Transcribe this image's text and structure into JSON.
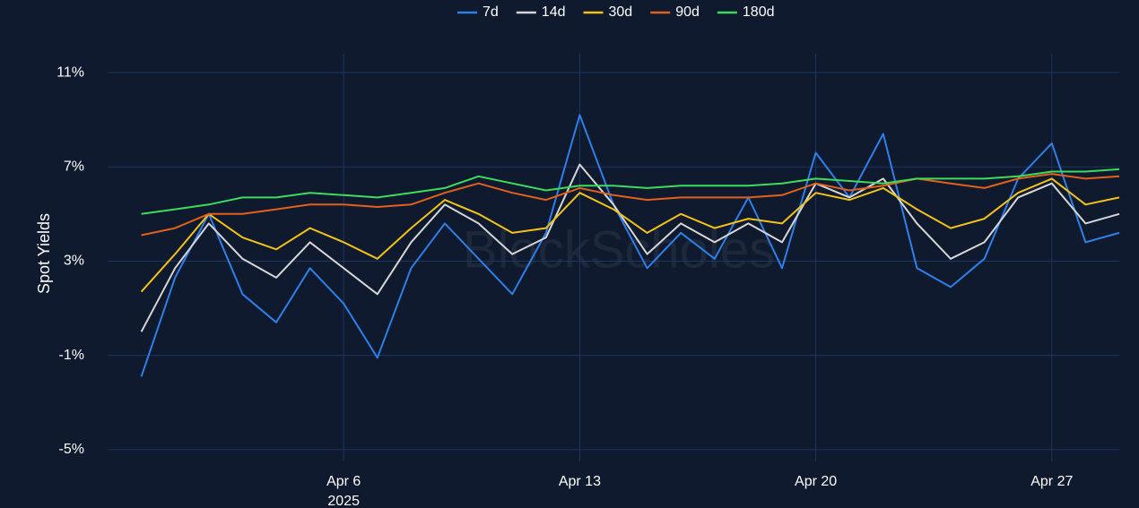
{
  "chart_data": {
    "type": "line",
    "y_label": "Spot Yields",
    "watermark": "BlockScholes",
    "legend": "top",
    "grid": true,
    "x": [
      "2025-03-31",
      "2025-04-01",
      "2025-04-02",
      "2025-04-03",
      "2025-04-04",
      "2025-04-05",
      "2025-04-06",
      "2025-04-07",
      "2025-04-08",
      "2025-04-09",
      "2025-04-10",
      "2025-04-11",
      "2025-04-12",
      "2025-04-13",
      "2025-04-14",
      "2025-04-15",
      "2025-04-16",
      "2025-04-17",
      "2025-04-18",
      "2025-04-19",
      "2025-04-20",
      "2025-04-21",
      "2025-04-22",
      "2025-04-23",
      "2025-04-24",
      "2025-04-25",
      "2025-04-26",
      "2025-04-27",
      "2025-04-28",
      "2025-04-29"
    ],
    "xlim": [
      "2025-03-30",
      "2025-04-29"
    ],
    "xticks": [
      {
        "value": "2025-04-06",
        "label": "Apr 6"
      },
      {
        "value": "2025-04-13",
        "label": "Apr 13"
      },
      {
        "value": "2025-04-20",
        "label": "Apr 20"
      },
      {
        "value": "2025-04-27",
        "label": "Apr 27"
      }
    ],
    "x_year": "2025",
    "ylim": [
      -5.5,
      11.8
    ],
    "yticks": [
      {
        "value": 11,
        "label": "11%"
      },
      {
        "value": 7,
        "label": "7%"
      },
      {
        "value": 3,
        "label": "3%"
      },
      {
        "value": -1,
        "label": "-1%"
      },
      {
        "value": -5,
        "label": "-5%"
      }
    ],
    "series": [
      {
        "name": "7d",
        "color": "#2f7fe8",
        "values": [
          -1.9,
          2.3,
          5.0,
          1.6,
          0.4,
          2.7,
          1.2,
          -1.1,
          2.7,
          4.6,
          3.1,
          1.6,
          4.2,
          9.2,
          5.4,
          2.7,
          4.2,
          3.1,
          5.7,
          2.7,
          7.6,
          5.7,
          8.4,
          2.7,
          1.9,
          3.1,
          6.5,
          8.0,
          3.8,
          4.2
        ]
      },
      {
        "name": "14d",
        "color": "#d6d6d6",
        "values": [
          0.0,
          2.7,
          4.6,
          3.1,
          2.3,
          3.8,
          2.7,
          1.6,
          3.8,
          5.4,
          4.6,
          3.3,
          4.0,
          7.1,
          5.4,
          3.3,
          4.6,
          3.8,
          4.6,
          3.8,
          6.3,
          5.7,
          6.5,
          4.6,
          3.1,
          3.8,
          5.7,
          6.3,
          4.6,
          5.0
        ]
      },
      {
        "name": "30d",
        "color": "#f2c21b",
        "values": [
          1.7,
          3.3,
          5.0,
          4.0,
          3.5,
          4.4,
          3.8,
          3.1,
          4.4,
          5.6,
          5.0,
          4.2,
          4.4,
          5.9,
          5.2,
          4.2,
          5.0,
          4.4,
          4.8,
          4.6,
          5.9,
          5.6,
          6.1,
          5.2,
          4.4,
          4.8,
          5.9,
          6.5,
          5.4,
          5.7
        ]
      },
      {
        "name": "90d",
        "color": "#e0601c",
        "values": [
          4.1,
          4.4,
          5.0,
          5.0,
          5.2,
          5.4,
          5.4,
          5.3,
          5.4,
          5.9,
          6.3,
          5.9,
          5.6,
          6.1,
          5.8,
          5.6,
          5.7,
          5.7,
          5.7,
          5.8,
          6.3,
          6.0,
          6.2,
          6.5,
          6.3,
          6.1,
          6.5,
          6.7,
          6.5,
          6.6
        ]
      },
      {
        "name": "180d",
        "color": "#3ddc5c",
        "values": [
          5.0,
          5.2,
          5.4,
          5.7,
          5.7,
          5.9,
          5.8,
          5.7,
          5.9,
          6.1,
          6.6,
          6.3,
          6.0,
          6.2,
          6.2,
          6.1,
          6.2,
          6.2,
          6.2,
          6.3,
          6.5,
          6.4,
          6.3,
          6.5,
          6.5,
          6.5,
          6.6,
          6.8,
          6.8,
          6.9
        ]
      }
    ]
  }
}
